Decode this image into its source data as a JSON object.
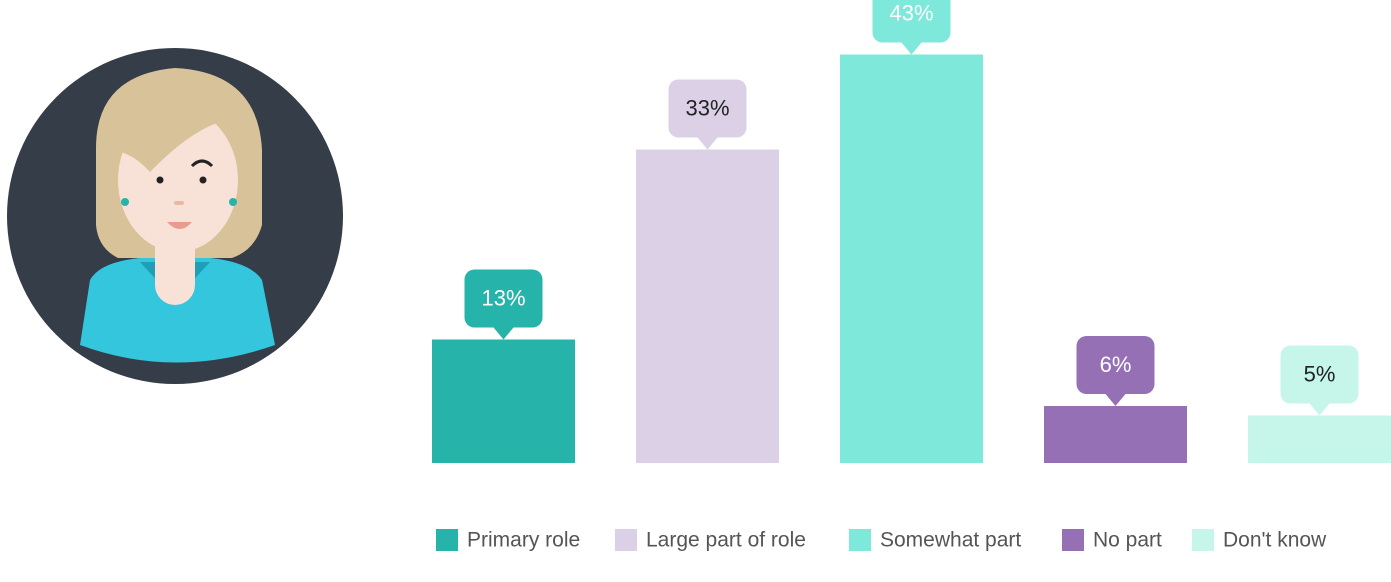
{
  "chart_data": {
    "type": "bar",
    "categories": [
      "Primary role",
      "Large part of role",
      "Somewhat part",
      "No part",
      "Don't know"
    ],
    "values": [
      13,
      33,
      43,
      6,
      5
    ],
    "value_labels": [
      "13%",
      "33%",
      "43%",
      "6%",
      "5%"
    ],
    "colors": [
      "#26b3aa",
      "#dbd0e6",
      "#7ee8da",
      "#9570b5",
      "#c6f5ea"
    ],
    "ylim": [
      0,
      48
    ]
  }
}
